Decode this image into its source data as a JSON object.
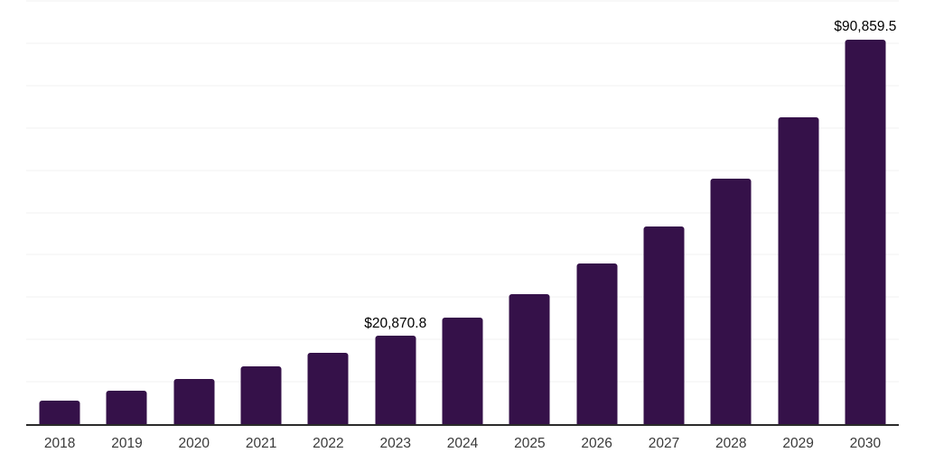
{
  "chart_data": {
    "type": "bar",
    "title": "",
    "xlabel": "",
    "ylabel": "",
    "categories": [
      "2018",
      "2019",
      "2020",
      "2021",
      "2022",
      "2023",
      "2024",
      "2025",
      "2026",
      "2027",
      "2028",
      "2029",
      "2030"
    ],
    "values": [
      5600,
      7850,
      10600,
      13700,
      16900,
      20870.8,
      25200,
      30700,
      38000,
      46650,
      58100,
      72600,
      90859.5
    ],
    "data_labels": {
      "2023": "$20,870.8",
      "2030": "$90,859.5"
    },
    "ylim": [
      0,
      100000
    ],
    "gridline_step": 10000,
    "grid": "horizontal-only",
    "legend_position": "none",
    "y_axis_tick_labels_visible": false,
    "bar_color": "#351149",
    "axis_line_color": "#2b2b2b",
    "gridline_color": "#f2f2f2",
    "data_label_color": "#000000",
    "tick_label_color": "#3a3a3a"
  }
}
